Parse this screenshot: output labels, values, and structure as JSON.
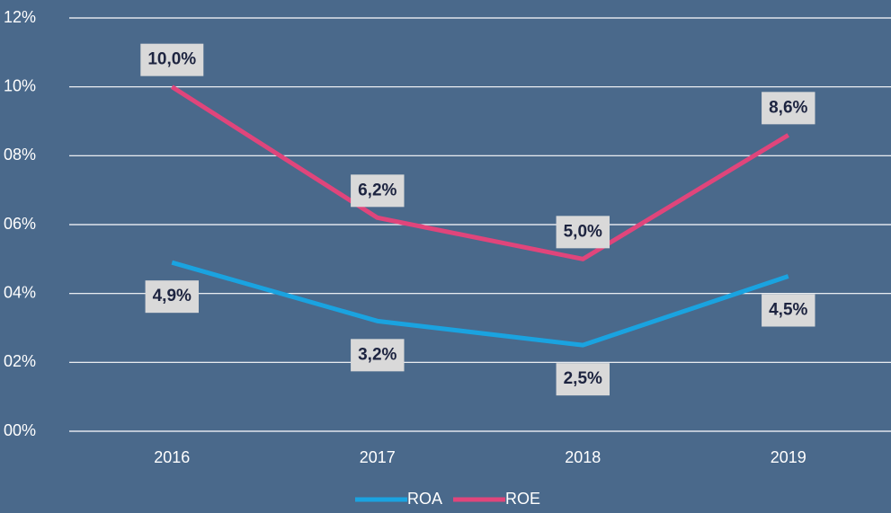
{
  "chart_data": {
    "type": "line",
    "categories": [
      "2016",
      "2017",
      "2018",
      "2019"
    ],
    "series": [
      {
        "name": "ROA",
        "color": "#1aa3e0",
        "values": [
          4.9,
          3.2,
          2.5,
          4.5
        ],
        "value_labels": [
          "4,9%",
          "3,2%",
          "2,5%",
          "4,5%"
        ]
      },
      {
        "name": "ROE",
        "color": "#e0457b",
        "values": [
          10.0,
          6.2,
          5.0,
          8.6
        ],
        "value_labels": [
          "10,0%",
          "6,2%",
          "5,0%",
          "8,6%"
        ]
      }
    ],
    "ylim": [
      0,
      12
    ],
    "yticks": [
      {
        "value": 0,
        "label": "00%"
      },
      {
        "value": 2,
        "label": "02%"
      },
      {
        "value": 4,
        "label": "04%"
      },
      {
        "value": 6,
        "label": "06%"
      },
      {
        "value": 8,
        "label": "08%"
      },
      {
        "value": 10,
        "label": "10%"
      },
      {
        "value": 12,
        "label": "12%"
      }
    ],
    "grid": true,
    "legend": "bottom"
  }
}
